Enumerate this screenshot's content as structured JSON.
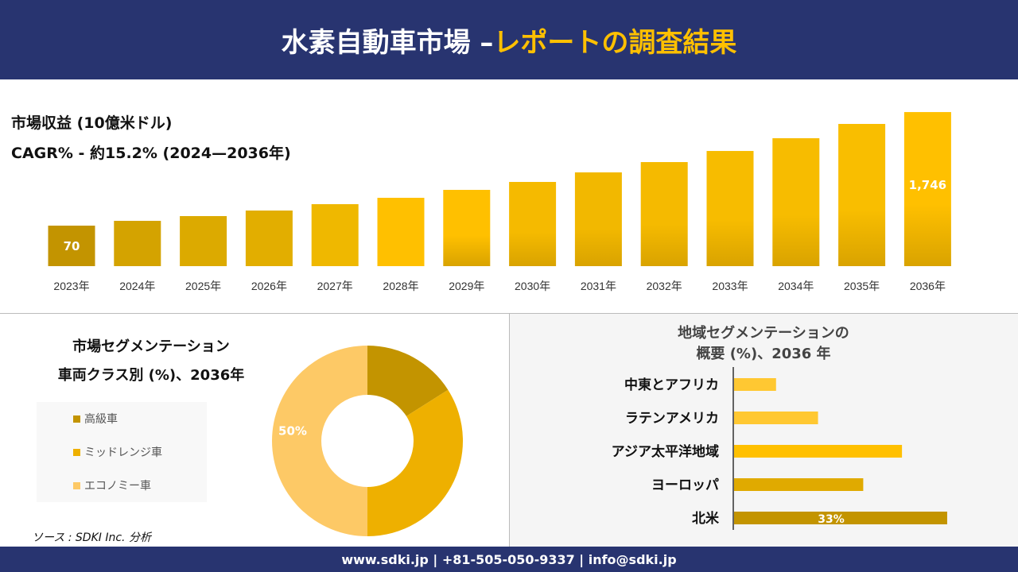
{
  "header": {
    "title_white": "水素自動車市場 –",
    "title_highlight": "レポートの調査結果"
  },
  "revenue": {
    "title": "市場収益 (10億米ドル)",
    "cagr": "CAGR% - 約15.2% (2024—2036年)"
  },
  "chart_data": [
    {
      "type": "bar",
      "categories": [
        "2023年",
        "2024年",
        "2025年",
        "2026年",
        "2027年",
        "2028年",
        "2029年",
        "2030年",
        "2031年",
        "2032年",
        "2033年",
        "2034年",
        "2035年",
        "2036年"
      ],
      "values": [
        70,
        141,
        211,
        293,
        387,
        481,
        598,
        715,
        856,
        1008,
        1172,
        1360,
        1571,
        1746
      ],
      "data_labels": {
        "0": "70",
        "13": "1,746"
      },
      "note_values_estimated": true,
      "colors": [
        "#c39400",
        "#d4a300",
        "#dcaa00",
        "#e2ae00",
        "#efb800",
        "#ffc000",
        "#ffc000",
        "#f5ba00",
        "#f2b800",
        "#f5ba00",
        "#f7bc00",
        "#f7bc00",
        "#f9be00",
        "#ffc000"
      ]
    },
    {
      "type": "pie",
      "variant": "donut",
      "title": "市場セグメンテーション 車両クラス別 (%)、2036年",
      "labels": [
        "高級車",
        "ミッドレンジ車",
        "エコノミー車"
      ],
      "values": [
        16,
        34,
        50
      ],
      "colors": [
        "#c39400",
        "#eeb000",
        "#fdc966"
      ],
      "data_labels": {
        "2": "50%"
      },
      "legend": "left"
    },
    {
      "type": "bar",
      "orientation": "horizontal",
      "title": "地域セグメンテーションの 概要 (%)、2036 年",
      "categories": [
        "中東とアフリカ",
        "ラテンアメリカ",
        "アジア太平洋地域",
        "ヨーロッパ",
        "北米"
      ],
      "values": [
        6.5,
        13,
        26,
        20,
        33
      ],
      "colors": [
        "#ffc832",
        "#ffc832",
        "#ffc000",
        "#e0aa00",
        "#c39400"
      ],
      "data_labels": {
        "4": "33%"
      }
    }
  ],
  "segment": {
    "title1": "市場セグメンテーション",
    "title2": "車両クラス別 (%)、2036年"
  },
  "region": {
    "title1": "地域セグメンテーションの",
    "title2": "概要 (%)、2036 年"
  },
  "source": "ソース : SDKI Inc. 分析",
  "footer": "www.sdki.jp | +81-505-050-9337 | info@sdki.jp"
}
